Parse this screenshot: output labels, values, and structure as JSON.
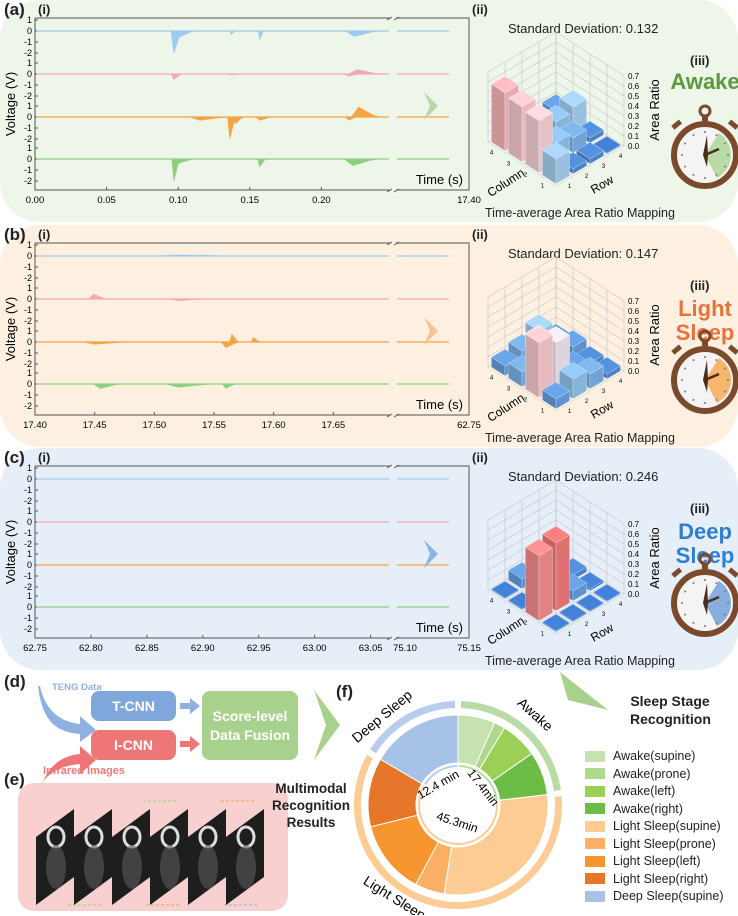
{
  "colors": {
    "awake": "#6aa84f",
    "light": "#e8733a",
    "deep": "#2f7fd0",
    "trace": [
      "#9ccaf0",
      "#f4a9b6",
      "#f5a445",
      "#8ecf80"
    ]
  },
  "panels": [
    {
      "label": "(a)",
      "sub_i": "(i)",
      "sub_ii": "(ii)",
      "sub_iii": "(iii)",
      "ylabel": "Voltage (V)",
      "xlabel": "Time (s)",
      "stage": "Awake",
      "stage_color": "#5a9a3c",
      "bg": "#eef5e9",
      "chevron": "#b7d9a6",
      "wedge": "#b9dba5",
      "std": "Standard Deviation: 0.132",
      "map_title": "Time-average Area Ratio Mapping",
      "xticks": [
        "0.00",
        "0.05",
        "0.10",
        "0.15",
        "0.20"
      ],
      "xend": "17.40",
      "xbreak": [],
      "domain": [
        0,
        0.25
      ],
      "events": [
        [
          [
            0.097,
            -2.0,
            0.002
          ],
          [
            0.1,
            -0.6,
            0.004
          ],
          [
            0.137,
            -0.3,
            0.001
          ],
          [
            0.157,
            -0.8,
            0.001
          ],
          [
            0.223,
            -0.5,
            0.006
          ]
        ],
        [
          [
            0.097,
            -0.5,
            0.002
          ],
          [
            0.137,
            -0.1,
            0.002
          ],
          [
            0.219,
            -0.2,
            0.003
          ],
          [
            0.225,
            0.4,
            0.006
          ]
        ],
        [
          [
            0.115,
            -0.3,
            0.007
          ],
          [
            0.136,
            -2.0,
            0.0015
          ],
          [
            0.14,
            -0.6,
            0.002
          ],
          [
            0.157,
            -0.3,
            0.003
          ],
          [
            0.219,
            -0.3,
            0.002
          ],
          [
            0.226,
            0.9,
            0.005
          ]
        ],
        [
          [
            0.097,
            -2.0,
            0.0015
          ],
          [
            0.1,
            -0.4,
            0.004
          ],
          [
            0.157,
            -0.7,
            0.0015
          ],
          [
            0.222,
            -0.6,
            0.006
          ]
        ]
      ],
      "bars": [
        [
          0.25,
          0.05,
          0.05,
          0.0
        ],
        [
          0.52,
          0.2,
          0.15,
          0.05
        ],
        [
          0.55,
          0.12,
          0.2,
          0.25
        ],
        [
          0.58,
          0.05,
          0.1,
          0.1
        ]
      ]
    },
    {
      "label": "(b)",
      "sub_i": "(i)",
      "sub_ii": "(ii)",
      "sub_iii": "(iii)",
      "ylabel": "Voltage (V)",
      "xlabel": "Time (s)",
      "stage": "Light Sleep",
      "stage_color": "#e8733a",
      "bg": "#fdf0e1",
      "chevron": "#f7c48e",
      "wedge": "#f7b56e",
      "std": "Standard Deviation: 0.147",
      "map_title": "Time-average Area Ratio Mapping",
      "xticks": [
        "17.40",
        "17.45",
        "17.50",
        "17.55",
        "17.60",
        "17.65"
      ],
      "xend": "62.75",
      "xbreak": [],
      "domain": [
        17.4,
        17.7
      ],
      "events": [
        [
          [
            17.52,
            0.1,
            0.02
          ]
        ],
        [
          [
            17.449,
            0.45,
            0.004
          ],
          [
            17.52,
            -0.15,
            0.008
          ]
        ],
        [
          [
            17.45,
            -0.2,
            0.01
          ],
          [
            17.56,
            -0.5,
            0.004
          ],
          [
            17.565,
            0.7,
            0.002
          ],
          [
            17.583,
            0.4,
            0.002
          ]
        ],
        [
          [
            17.455,
            -0.4,
            0.006
          ],
          [
            17.52,
            -0.3,
            0.01
          ],
          [
            17.56,
            -0.4,
            0.003
          ]
        ]
      ],
      "bars": [
        [
          0.1,
          0.2,
          0.15,
          0.05
        ],
        [
          0.55,
          0.45,
          0.1,
          0.05
        ],
        [
          0.15,
          0.35,
          0.2,
          0.1
        ],
        [
          0.1,
          0.15,
          0.25,
          0.05
        ]
      ]
    },
    {
      "label": "(c)",
      "sub_i": "(i)",
      "sub_ii": "(ii)",
      "sub_iii": "(iii)",
      "ylabel": "Voltage (V)",
      "xlabel": "Time (s)",
      "stage": "Deep Sleep",
      "stage_color": "#2f7fd0",
      "bg": "#e6eef8",
      "chevron": "#8fb3e3",
      "wedge": "#88aee0",
      "std": "Standard Deviation: 0.246",
      "map_title": "Time-average Area Ratio Mapping",
      "xticks": [
        "62.75",
        "62.80",
        "62.85",
        "62.90",
        "62.95",
        "63.00",
        "63.05"
      ],
      "xend": "75.15",
      "xbreak": [
        "75.10"
      ],
      "domain": [
        62.75,
        63.07
      ],
      "events": [
        [],
        [],
        [],
        []
      ],
      "bars": [
        [
          0.0,
          0.0,
          0.0,
          0.0
        ],
        [
          0.65,
          0.68,
          0.1,
          0.02
        ],
        [
          0.0,
          0.15,
          0.2,
          0.05
        ],
        [
          0.0,
          0.1,
          0.15,
          0.02
        ]
      ]
    }
  ],
  "yticks": [
    "1",
    "0",
    "-1",
    "-2"
  ],
  "ztick_labels": [
    "0.0",
    "0.1",
    "0.2",
    "0.3",
    "0.4",
    "0.5",
    "0.6",
    "0.7"
  ],
  "axis3d": {
    "col": "Column",
    "row": "Row",
    "z": "Area Ratio",
    "idx": [
      "1",
      "2",
      "3",
      "4"
    ]
  },
  "d": {
    "label": "(d)",
    "teng": "TENG Data",
    "tcnn": "T-CNN",
    "icnn": "I-CNN",
    "fusion": "Score-level Data Fusion",
    "infrared": "Infrared Images"
  },
  "e": {
    "label": "(e)"
  },
  "multimodal": "Multimodal Recognition Results",
  "f": {
    "label": "(f)",
    "title": "Sleep Stage Recognition",
    "stage_labels": {
      "deep": "Deep Sleep",
      "awake": "Awake",
      "light": "Light Sleep"
    },
    "inner_labels": {
      "deep": "12.4 min",
      "awake": "17.4min",
      "light": "45.3min"
    }
  },
  "chart_data": {
    "type": "pie",
    "title": "Sleep Stage Recognition",
    "categories": [
      "Awake(supine)",
      "Awake(prone)",
      "Awake(left)",
      "Awake(right)",
      "Light Sleep(supine)",
      "Light Sleep(prone)",
      "Light Sleep(left)",
      "Light Sleep(right)",
      "Deep Sleep(supine)"
    ],
    "values": [
      5.0,
      1.5,
      5.0,
      5.9,
      22.0,
      4.0,
      10.0,
      9.3,
      12.4
    ],
    "colors": [
      "#c6e2ae",
      "#afd88c",
      "#9ccf55",
      "#6cbd45",
      "#fdcb94",
      "#fbb065",
      "#f7962f",
      "#e5762a",
      "#a6c2e6"
    ],
    "stage_totals_min": {
      "Awake": 17.4,
      "Light Sleep": 45.3,
      "Deep Sleep": 12.4
    },
    "legend": "right"
  }
}
